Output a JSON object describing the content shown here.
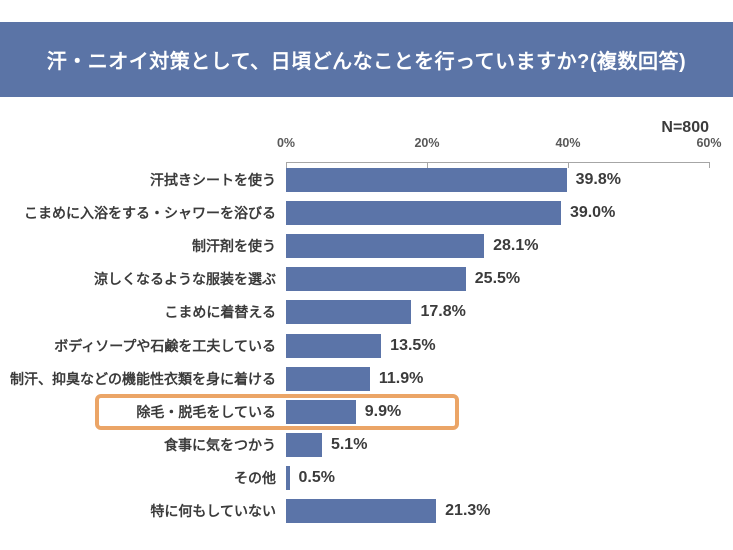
{
  "header": {
    "title": "汗・ニオイ対策として、日頃どんなことを行っていますか?(複数回答)"
  },
  "sample_label": "N=800",
  "theme": {
    "header_bg": "#5b74a6",
    "header_text": "#ffffff",
    "bar_color": "#5b74a8",
    "highlight_color": "#eba567",
    "label_color": "#3b3b3b",
    "axis_color": "#a6a6a6",
    "axis_label_color": "#595959"
  },
  "chart_data": {
    "type": "bar",
    "orientation": "horizontal",
    "title": "汗・ニオイ対策として、日頃どんなことを行っていますか?(複数回答)",
    "sample_size_label": "N=800",
    "categories": [
      "汗拭きシートを使う",
      "こまめに入浴をする・シャワーを浴びる",
      "制汗剤を使う",
      "涼しくなるような服装を選ぶ",
      "こまめに着替える",
      "ボディソープや石鹸を工夫している",
      "制汗、抑臭などの機能性衣類を身に着ける",
      "除毛・脱毛をしている",
      "食事に気をつかう",
      "その他",
      "特に何もしていない"
    ],
    "values": [
      39.8,
      39.0,
      28.1,
      25.5,
      17.8,
      13.5,
      11.9,
      9.9,
      5.1,
      0.5,
      21.3
    ],
    "value_labels": [
      "39.8%",
      "39.0%",
      "28.1%",
      "25.5%",
      "17.8%",
      "13.5%",
      "11.9%",
      "9.9%",
      "5.1%",
      "0.5%",
      "21.3%"
    ],
    "axis_tick_labels": [
      "0%",
      "20%",
      "40%",
      "60%"
    ],
    "xlim": [
      0,
      60
    ],
    "grid": false,
    "legend": false,
    "highlighted_category": "除毛・脱毛をしている"
  }
}
